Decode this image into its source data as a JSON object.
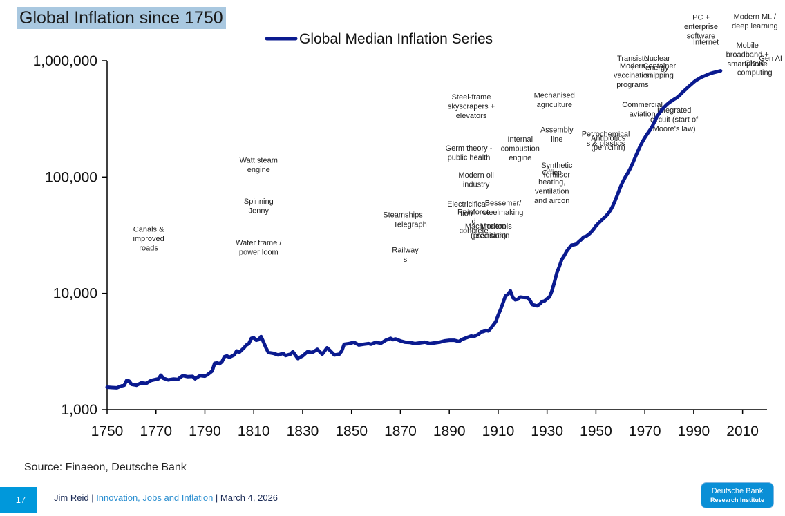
{
  "page": {
    "title": "Global Inflation since 1750",
    "source": "Source: Finaeon, Deutsche Bank",
    "page_number": "17",
    "footer": {
      "author": "Jim Reid",
      "sep1": " | ",
      "deck": "Innovation, Jobs and Inflation",
      "sep2": " | ",
      "date": "March 4, 2026"
    },
    "logo": {
      "line1": "Deutsche Bank",
      "line2": "Research Institute"
    }
  },
  "chart_data": {
    "type": "line",
    "title": "Global Inflation since 1750",
    "xlabel": "",
    "ylabel": "",
    "xlim": [
      1750,
      2020
    ],
    "ylim": [
      1000,
      1000000
    ],
    "y_scale": "log",
    "grid": false,
    "legend_position": "top-center",
    "x_ticks": [
      1750,
      1770,
      1790,
      1810,
      1830,
      1850,
      1870,
      1890,
      1910,
      1930,
      1950,
      1970,
      1990,
      2010
    ],
    "x_tick_labels": [
      "1750",
      "1770",
      "1790",
      "1810",
      "1830",
      "1850",
      "1870",
      "1890",
      "1910",
      "1930",
      "1950",
      "1970",
      "1990",
      "2010"
    ],
    "y_ticks": [
      1000,
      10000,
      100000,
      1000000
    ],
    "y_tick_labels": [
      "1,000",
      "10,000",
      "100,000",
      "1,000,000"
    ],
    "series": [
      {
        "name": "Global Median Inflation Series",
        "color": "#0a1a8f",
        "points": [
          [
            1750,
            1560
          ],
          [
            1752,
            1550
          ],
          [
            1754,
            1540
          ],
          [
            1756,
            1600
          ],
          [
            1757,
            1620
          ],
          [
            1758,
            1780
          ],
          [
            1759,
            1760
          ],
          [
            1760,
            1650
          ],
          [
            1762,
            1620
          ],
          [
            1764,
            1700
          ],
          [
            1766,
            1680
          ],
          [
            1768,
            1780
          ],
          [
            1770,
            1820
          ],
          [
            1771,
            1840
          ],
          [
            1772,
            1980
          ],
          [
            1773,
            1860
          ],
          [
            1775,
            1800
          ],
          [
            1777,
            1830
          ],
          [
            1779,
            1820
          ],
          [
            1780,
            1900
          ],
          [
            1781,
            1960
          ],
          [
            1783,
            1920
          ],
          [
            1785,
            1930
          ],
          [
            1786,
            1840
          ],
          [
            1788,
            1960
          ],
          [
            1790,
            1940
          ],
          [
            1791,
            1990
          ],
          [
            1793,
            2150
          ],
          [
            1794,
            2500
          ],
          [
            1795,
            2520
          ],
          [
            1796,
            2480
          ],
          [
            1797,
            2580
          ],
          [
            1798,
            2850
          ],
          [
            1799,
            2900
          ],
          [
            1800,
            2820
          ],
          [
            1802,
            2950
          ],
          [
            1803,
            3200
          ],
          [
            1804,
            3100
          ],
          [
            1806,
            3400
          ],
          [
            1807,
            3600
          ],
          [
            1808,
            3700
          ],
          [
            1809,
            4100
          ],
          [
            1810,
            4150
          ],
          [
            1811,
            3950
          ],
          [
            1812,
            4000
          ],
          [
            1813,
            4250
          ],
          [
            1814,
            3800
          ],
          [
            1815,
            3400
          ],
          [
            1816,
            3100
          ],
          [
            1818,
            3050
          ],
          [
            1820,
            2950
          ],
          [
            1822,
            3050
          ],
          [
            1823,
            2920
          ],
          [
            1825,
            3000
          ],
          [
            1826,
            3150
          ],
          [
            1827,
            2950
          ],
          [
            1828,
            2750
          ],
          [
            1830,
            2900
          ],
          [
            1832,
            3150
          ],
          [
            1834,
            3100
          ],
          [
            1836,
            3300
          ],
          [
            1838,
            3000
          ],
          [
            1840,
            3400
          ],
          [
            1841,
            3250
          ],
          [
            1843,
            2950
          ],
          [
            1845,
            3000
          ],
          [
            1846,
            3200
          ],
          [
            1847,
            3650
          ],
          [
            1849,
            3700
          ],
          [
            1851,
            3800
          ],
          [
            1853,
            3600
          ],
          [
            1855,
            3650
          ],
          [
            1857,
            3700
          ],
          [
            1858,
            3650
          ],
          [
            1860,
            3800
          ],
          [
            1862,
            3720
          ],
          [
            1864,
            3950
          ],
          [
            1866,
            4100
          ],
          [
            1867,
            4000
          ],
          [
            1868,
            4050
          ],
          [
            1870,
            3900
          ],
          [
            1872,
            3800
          ],
          [
            1874,
            3780
          ],
          [
            1876,
            3700
          ],
          [
            1878,
            3750
          ],
          [
            1880,
            3800
          ],
          [
            1882,
            3700
          ],
          [
            1884,
            3750
          ],
          [
            1886,
            3800
          ],
          [
            1888,
            3900
          ],
          [
            1890,
            3950
          ],
          [
            1892,
            3950
          ],
          [
            1894,
            3850
          ],
          [
            1895,
            4000
          ],
          [
            1897,
            4150
          ],
          [
            1899,
            4300
          ],
          [
            1900,
            4250
          ],
          [
            1902,
            4450
          ],
          [
            1903,
            4650
          ],
          [
            1904,
            4700
          ],
          [
            1905,
            4800
          ],
          [
            1906,
            4750
          ],
          [
            1907,
            5000
          ],
          [
            1909,
            5700
          ],
          [
            1910,
            6500
          ],
          [
            1911,
            7300
          ],
          [
            1912,
            8300
          ],
          [
            1913,
            9500
          ],
          [
            1914,
            9800
          ],
          [
            1915,
            10500
          ],
          [
            1916,
            9200
          ],
          [
            1917,
            8800
          ],
          [
            1918,
            8900
          ],
          [
            1919,
            9300
          ],
          [
            1920,
            9250
          ],
          [
            1922,
            9200
          ],
          [
            1923,
            8700
          ],
          [
            1924,
            8000
          ],
          [
            1925,
            7900
          ],
          [
            1926,
            7800
          ],
          [
            1927,
            8100
          ],
          [
            1928,
            8500
          ],
          [
            1929,
            8600
          ],
          [
            1930,
            9000
          ],
          [
            1931,
            9300
          ],
          [
            1932,
            10500
          ],
          [
            1933,
            12500
          ],
          [
            1934,
            15000
          ],
          [
            1935,
            17000
          ],
          [
            1936,
            19500
          ],
          [
            1937,
            21000
          ],
          [
            1938,
            23000
          ],
          [
            1939,
            24500
          ],
          [
            1940,
            26000
          ],
          [
            1941,
            26200
          ],
          [
            1942,
            26500
          ],
          [
            1943,
            27800
          ],
          [
            1944,
            29000
          ],
          [
            1945,
            30500
          ],
          [
            1946,
            31000
          ],
          [
            1947,
            32000
          ],
          [
            1948,
            33500
          ],
          [
            1949,
            35500
          ],
          [
            1950,
            38000
          ],
          [
            1951,
            40000
          ],
          [
            1952,
            42000
          ],
          [
            1953,
            44000
          ],
          [
            1954,
            46000
          ],
          [
            1955,
            48500
          ],
          [
            1956,
            52000
          ],
          [
            1957,
            57000
          ],
          [
            1958,
            64000
          ],
          [
            1959,
            72000
          ],
          [
            1960,
            82000
          ],
          [
            1961,
            91000
          ],
          [
            1962,
            100000
          ],
          [
            1963,
            108000
          ],
          [
            1964,
            118000
          ],
          [
            1965,
            131000
          ],
          [
            1966,
            147000
          ],
          [
            1967,
            164000
          ],
          [
            1968,
            183000
          ],
          [
            1969,
            201000
          ],
          [
            1970,
            218000
          ],
          [
            1971,
            235000
          ],
          [
            1972,
            252000
          ],
          [
            1973,
            272000
          ],
          [
            1974,
            300000
          ],
          [
            1975,
            332000
          ],
          [
            1976,
            355000
          ],
          [
            1977,
            381000
          ],
          [
            1978,
            400000
          ],
          [
            1979,
            420000
          ],
          [
            1980,
            438000
          ],
          [
            1981,
            452000
          ],
          [
            1982,
            467000
          ],
          [
            1983,
            480000
          ],
          [
            1984,
            500000
          ],
          [
            1985,
            525000
          ],
          [
            1986,
            550000
          ],
          [
            1987,
            575000
          ],
          [
            1988,
            602000
          ],
          [
            1989,
            628000
          ],
          [
            1990,
            655000
          ],
          [
            1991,
            680000
          ],
          [
            1992,
            700000
          ],
          [
            1993,
            720000
          ],
          [
            1994,
            735000
          ],
          [
            1995,
            750000
          ],
          [
            1996,
            765000
          ],
          [
            1997,
            780000
          ],
          [
            1998,
            790000
          ],
          [
            1999,
            800000
          ],
          [
            2000,
            810000
          ],
          [
            2001,
            820000
          ]
        ]
      }
    ],
    "annotations": [
      {
        "x": 1767,
        "y": 1780,
        "lines": [
          "Canals &",
          "improved",
          "roads"
        ]
      },
      {
        "x": 1812,
        "y": 2620,
        "lines": [
          "Watt steam",
          "engine"
        ]
      },
      {
        "x": 1812,
        "y": 2120,
        "lines": [
          "Spinning",
          "Jenny"
        ]
      },
      {
        "x": 1812,
        "y": 1620,
        "lines": [
          "Water frame /",
          "power loom"
        ]
      },
      {
        "x": 1906,
        "y": 1820,
        "lines": [
          "Machine tools",
          "(precision)"
        ]
      },
      {
        "x": 1872,
        "y": 1530,
        "lines": [
          "Railway",
          "s"
        ]
      },
      {
        "x": 1871,
        "y": 1960,
        "lines": [
          "Steamships"
        ]
      },
      {
        "x": 1874,
        "y": 1840,
        "lines": [
          "Telegraph"
        ]
      },
      {
        "x": 1912,
        "y": 2100,
        "lines": [
          "Bessemer/",
          "steelmaking"
        ]
      },
      {
        "x": 1908,
        "y": 1820,
        "lines": [
          "Modern",
          "sanitation"
        ]
      },
      {
        "x": 1897,
        "y": 2090,
        "lines": [
          "Electricifica",
          "tion"
        ]
      },
      {
        "x": 1900,
        "y": 1990,
        "lines": [
          "Reinforce",
          "d",
          "concrete"
        ]
      },
      {
        "x": 1901,
        "y": 2440,
        "lines": [
          "Modern oil",
          "industry"
        ]
      },
      {
        "x": 1898,
        "y": 2770,
        "lines": [
          "Germ theory -",
          "public health"
        ]
      },
      {
        "x": 1899,
        "y": 3390,
        "lines": [
          "Steel-frame",
          "skyscrapers +",
          "elevators"
        ]
      },
      {
        "x": 1919,
        "y": 2880,
        "lines": [
          "Internal",
          "combustion",
          "engine"
        ]
      },
      {
        "x": 1933,
        "y": 3410,
        "lines": [
          "Mechanised",
          "agriculture"
        ]
      },
      {
        "x": 1934,
        "y": 2990,
        "lines": [
          "Assembly",
          "line"
        ]
      },
      {
        "x": 1934,
        "y": 2560,
        "lines": [
          "Synthetic",
          "fertiliser"
        ]
      },
      {
        "x": 1932,
        "y": 2470,
        "lines": [
          "Office",
          "heating,",
          "ventilation",
          "and aircon"
        ]
      },
      {
        "x": 1954,
        "y": 2940,
        "lines": [
          "Petrochemical",
          "s & plastics"
        ]
      },
      {
        "x": 1955,
        "y": 2890,
        "lines": [
          "Antibiotics",
          "(penicillin)"
        ]
      },
      {
        "x": 1965,
        "y": 3860,
        "lines": [
          "Transisto",
          "r"
        ]
      },
      {
        "x": 1965,
        "y": 3770,
        "lines": [
          "Modern",
          "vaccination",
          "programs"
        ]
      },
      {
        "x": 1975,
        "y": 3860,
        "lines": [
          "Nuclear",
          "energy"
        ]
      },
      {
        "x": 1976,
        "y": 3770,
        "lines": [
          "Container",
          "shipping"
        ]
      },
      {
        "x": 1969,
        "y": 3300,
        "lines": [
          "Commercial",
          "aviation"
        ]
      },
      {
        "x": 1982,
        "y": 3230,
        "lines": [
          "Integrated",
          "circuit (start of",
          "Moore's law)"
        ]
      },
      {
        "x": 1993,
        "y": 4360,
        "lines": [
          "PC +",
          "enterprise",
          "software"
        ]
      },
      {
        "x": 1995,
        "y": 4060,
        "lines": [
          "Internet"
        ]
      },
      {
        "x": 2015,
        "y": 4370,
        "lines": [
          "Modern ML /",
          "deep learning"
        ]
      },
      {
        "x": 2012,
        "y": 4020,
        "lines": [
          "Mobile",
          "broadband +",
          "smartphone"
        ]
      },
      {
        "x": 2015,
        "y": 3800,
        "lines": [
          "Cloud",
          "computing"
        ]
      },
      {
        "x": 2028,
        "y": 3860,
        "lines": [
          "Gen AI"
        ]
      }
    ]
  }
}
